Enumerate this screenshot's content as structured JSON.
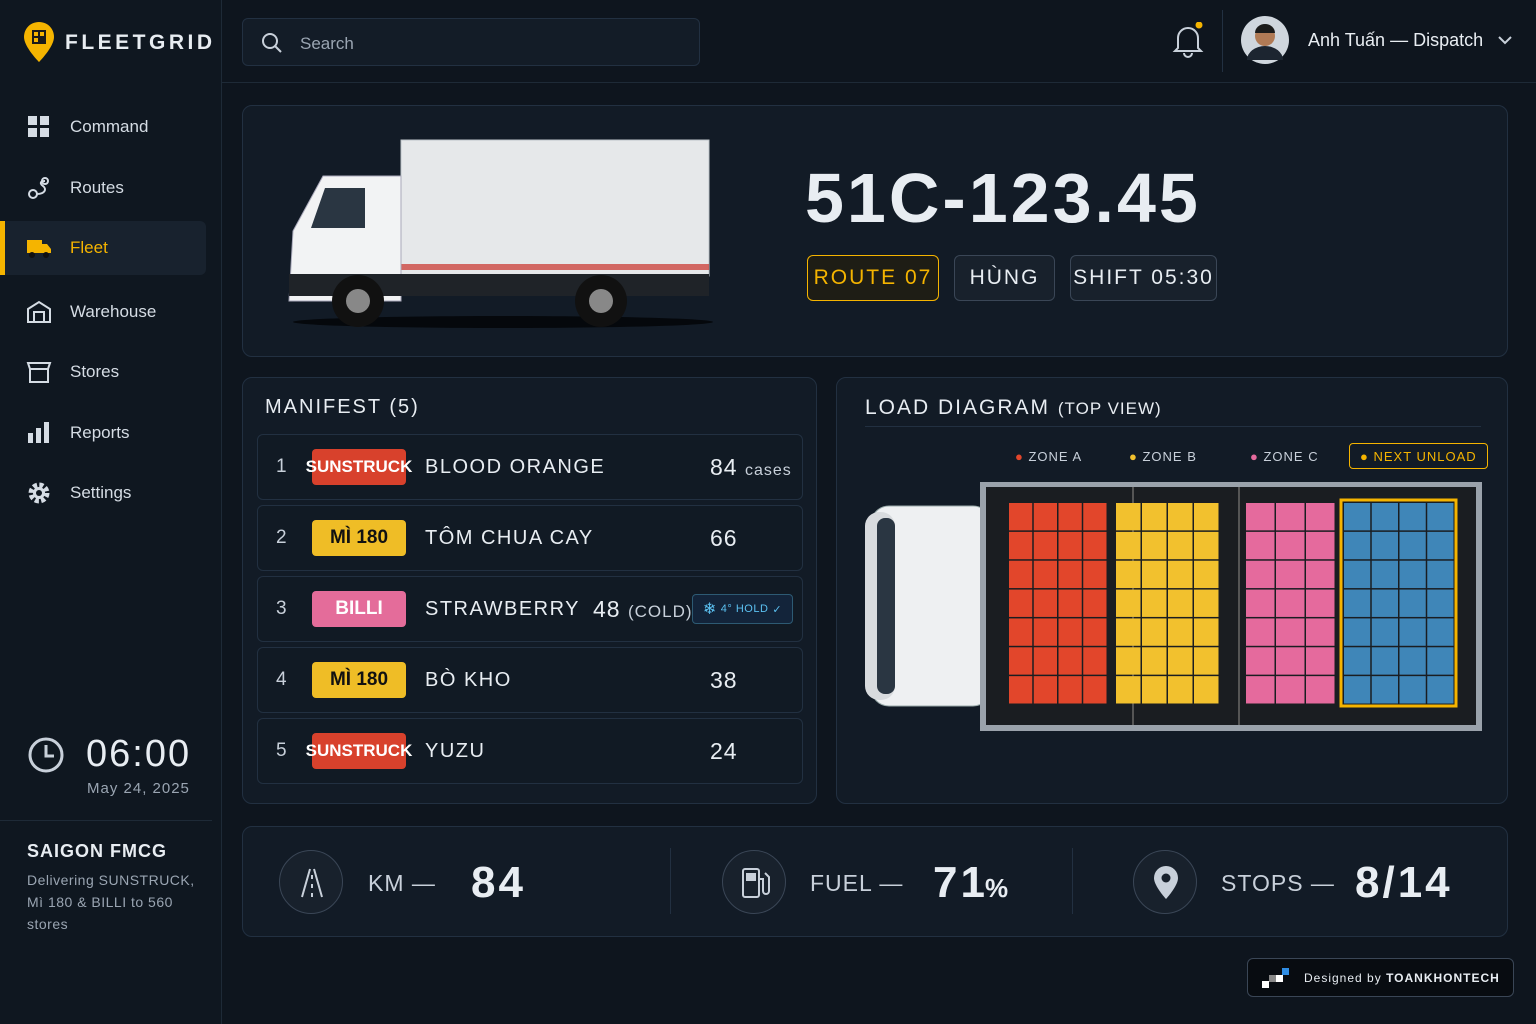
{
  "brand": "FLEETGRID",
  "search_placeholder": "Search",
  "user": {
    "name": "Anh Tuấn — Dispatch"
  },
  "nav": [
    "Command",
    "Routes",
    "Fleet",
    "Warehouse",
    "Stores",
    "Reports",
    "Settings"
  ],
  "clock": {
    "time": "06:00",
    "date": "May 24, 2025"
  },
  "company": {
    "name": "SAIGON FMCG",
    "description": "Delivering SUNSTRUCK, Mì 180 & BILLI to 560 stores"
  },
  "vehicle": {
    "plate": "51C-123.45",
    "tags": [
      "ROUTE 07",
      "HÙNG",
      "SHIFT 05:30"
    ]
  },
  "manifest": {
    "title": "MANIFEST",
    "count": "(5)",
    "rows": [
      {
        "index": 1,
        "brand": "SUNSTRUCK",
        "product": "BLOOD ORANGE",
        "qty": 84,
        "unit": "cases"
      },
      {
        "index": 2,
        "brand": "MÌ 180",
        "product": "TÔM CHUA CAY",
        "qty": 66
      },
      {
        "index": 3,
        "brand": "BILLI",
        "product": "STRAWBERRY",
        "qty": 48,
        "unit": "(COLD)",
        "hold": "4° HOLD"
      },
      {
        "index": 4,
        "brand": "MÌ 180",
        "product": "BÒ KHO",
        "qty": 38
      },
      {
        "index": 5,
        "brand": "SUNSTRUCK",
        "product": "YUZU",
        "qty": 24
      }
    ]
  },
  "load_diagram": {
    "title": "LOAD DIAGRAM",
    "subtitle": "(TOP VIEW)",
    "legend": [
      "ZONE A",
      "ZONE B",
      "ZONE C",
      "NEXT UNLOAD"
    ]
  },
  "stats": [
    {
      "label": "KM —",
      "value": "84"
    },
    {
      "label": "FUEL —",
      "value": "71",
      "unit": "%"
    },
    {
      "label": "STOPS —",
      "value": "8/14"
    }
  ],
  "footer": {
    "credit_prefix": "Designed by",
    "credit_name": "TOANKHONTECH"
  }
}
